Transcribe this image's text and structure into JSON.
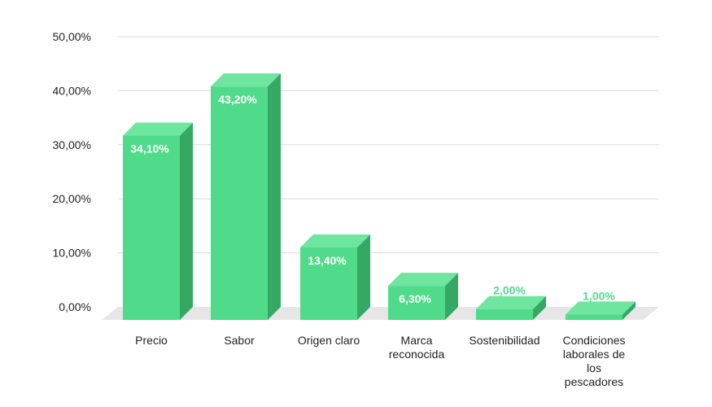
{
  "chart_data": {
    "type": "bar",
    "style": "3d",
    "categories": [
      "Precio",
      "Sabor",
      "Origen claro",
      "Marca reconocida",
      "Sostenibilidad",
      "Condiciones laborales de los pescadores"
    ],
    "category_lines": [
      [
        "Precio"
      ],
      [
        "Sabor"
      ],
      [
        "Origen claro"
      ],
      [
        "Marca",
        "reconocida"
      ],
      [
        "Sostenibilidad"
      ],
      [
        "Condiciones",
        "laborales de",
        "los",
        "pescadores"
      ]
    ],
    "values": [
      34.1,
      43.2,
      13.4,
      6.3,
      2.0,
      1.0
    ],
    "value_labels": [
      "34,10%",
      "43,20%",
      "13,40%",
      "6,30%",
      "2,00%",
      "1,00%"
    ],
    "y_ticks": [
      "0,00%",
      "10,00%",
      "20,00%",
      "30,00%",
      "40,00%",
      "50,00%"
    ],
    "ylim": [
      0,
      50
    ],
    "grid": true,
    "legend": "none",
    "colors": {
      "bar_front": "#4fdb8a",
      "bar_top": "#6fe6a0",
      "bar_side": "#35a864",
      "floor": "#e6e6e6",
      "grid": "#d9d9d9",
      "label_inside": "#ffffff",
      "label_outside": "#4fdb8a"
    }
  }
}
